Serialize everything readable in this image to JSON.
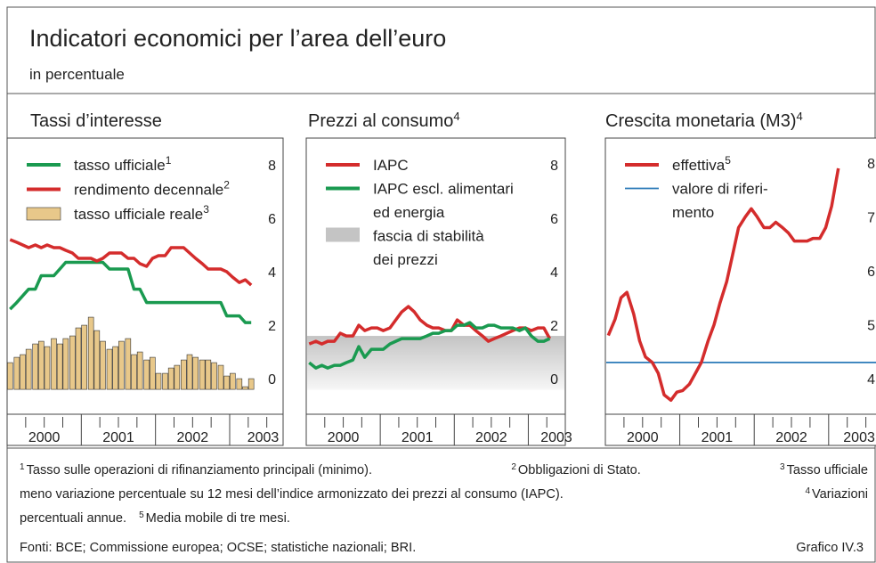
{
  "title": "Indicatori economici per l’area dell’euro",
  "subtitle": "in percentuale",
  "chart_data": [
    {
      "type": "combo",
      "title": "Tassi d’interesse",
      "x": [
        2000.04,
        2000.13,
        2000.21,
        2000.29,
        2000.38,
        2000.46,
        2000.54,
        2000.63,
        2000.71,
        2000.79,
        2000.88,
        2000.96,
        2001.04,
        2001.13,
        2001.21,
        2001.29,
        2001.38,
        2001.46,
        2001.54,
        2001.63,
        2001.71,
        2001.79,
        2001.88,
        2001.96,
        2002.04,
        2002.13,
        2002.21,
        2002.29,
        2002.38,
        2002.46,
        2002.54,
        2002.63,
        2002.71,
        2002.79,
        2002.88,
        2002.96,
        2003.04,
        2003.13,
        2003.21,
        2003.29
      ],
      "xlim": [
        2000,
        2003.72
      ],
      "xticks": [
        {
          "value": 2000.5,
          "label": "2000"
        },
        {
          "value": 2001.5,
          "label": "2001"
        },
        {
          "value": 2002.5,
          "label": "2002"
        },
        {
          "value": 2003.45,
          "label": "2003"
        }
      ],
      "xticks_major": [
        2001,
        2002,
        2003
      ],
      "xticks_minor": [
        2000.25,
        2000.5,
        2000.75,
        2001.25,
        2001.5,
        2001.75,
        2002.25,
        2002.5,
        2002.75,
        2003.25,
        2003.5
      ],
      "ylim": [
        -0.93,
        9.4
      ],
      "yticks": [
        0,
        2,
        4,
        6,
        8
      ],
      "series": [
        {
          "name": "tasso ufficiale",
          "note": "1",
          "kind": "line",
          "color": "#1a9a50",
          "values": [
            3.0,
            3.25,
            3.5,
            3.75,
            3.75,
            4.25,
            4.25,
            4.25,
            4.5,
            4.75,
            4.75,
            4.75,
            4.75,
            4.75,
            4.75,
            4.75,
            4.5,
            4.5,
            4.5,
            4.5,
            3.75,
            3.75,
            3.25,
            3.25,
            3.25,
            3.25,
            3.25,
            3.25,
            3.25,
            3.25,
            3.25,
            3.25,
            3.25,
            3.25,
            3.25,
            2.75,
            2.75,
            2.75,
            2.5,
            2.5
          ]
        },
        {
          "name": "rendimento decennale",
          "note": "2",
          "kind": "line",
          "color": "#d42c2c",
          "values": [
            5.6,
            5.5,
            5.4,
            5.3,
            5.4,
            5.3,
            5.4,
            5.3,
            5.3,
            5.2,
            5.1,
            4.9,
            4.9,
            4.9,
            4.8,
            4.9,
            5.1,
            5.1,
            5.1,
            4.9,
            4.9,
            4.7,
            4.6,
            4.9,
            5.0,
            5.0,
            5.3,
            5.3,
            5.3,
            5.1,
            4.9,
            4.7,
            4.5,
            4.5,
            4.5,
            4.4,
            4.2,
            4.0,
            4.1,
            3.9
          ]
        },
        {
          "name": "tasso ufficiale reale",
          "note": "3",
          "kind": "bar",
          "color": "#e8c88a",
          "values": [
            1.0,
            1.2,
            1.3,
            1.5,
            1.7,
            1.8,
            1.6,
            1.9,
            1.7,
            1.9,
            2.0,
            2.3,
            2.4,
            2.7,
            2.2,
            1.8,
            1.5,
            1.6,
            1.8,
            1.9,
            1.3,
            1.4,
            1.1,
            1.2,
            0.6,
            0.6,
            0.8,
            0.9,
            1.1,
            1.3,
            1.2,
            1.1,
            1.1,
            1.0,
            0.9,
            0.5,
            0.6,
            0.4,
            0.1,
            0.4
          ]
        }
      ]
    },
    {
      "type": "line",
      "title": "Prezzi al consumo",
      "title_note": "4",
      "x": [
        2000.04,
        2000.13,
        2000.21,
        2000.29,
        2000.38,
        2000.46,
        2000.54,
        2000.63,
        2000.71,
        2000.79,
        2000.88,
        2000.96,
        2001.04,
        2001.13,
        2001.21,
        2001.29,
        2001.38,
        2001.46,
        2001.54,
        2001.63,
        2001.71,
        2001.79,
        2001.88,
        2001.96,
        2002.04,
        2002.13,
        2002.21,
        2002.29,
        2002.38,
        2002.46,
        2002.54,
        2002.63,
        2002.71,
        2002.79,
        2002.88,
        2002.96,
        2003.04,
        2003.13,
        2003.21,
        2003.29
      ],
      "xlim": [
        2000,
        2003.5
      ],
      "xticks": [
        {
          "value": 2000.5,
          "label": "2000"
        },
        {
          "value": 2001.5,
          "label": "2001"
        },
        {
          "value": 2002.5,
          "label": "2002"
        },
        {
          "value": 2003.38,
          "label": "2003"
        }
      ],
      "xticks_major": [
        2001,
        2002,
        2003
      ],
      "xticks_minor": [
        2000.25,
        2000.5,
        2000.75,
        2001.25,
        2001.5,
        2001.75,
        2002.25,
        2002.5,
        2002.75,
        2003.25
      ],
      "ylim": [
        -0.93,
        9.4
      ],
      "yticks": [
        0,
        2,
        4,
        6,
        8
      ],
      "series": [
        {
          "name": "IAPC",
          "kind": "line",
          "color": "#d42c2c",
          "values": [
            1.7,
            1.8,
            1.7,
            1.8,
            1.8,
            2.1,
            2.0,
            2.0,
            2.4,
            2.2,
            2.3,
            2.3,
            2.2,
            2.3,
            2.6,
            2.9,
            3.1,
            2.9,
            2.6,
            2.4,
            2.3,
            2.3,
            2.2,
            2.2,
            2.6,
            2.4,
            2.4,
            2.2,
            2.0,
            1.8,
            1.9,
            2.0,
            2.1,
            2.2,
            2.3,
            2.3,
            2.2,
            2.3,
            2.3,
            1.9
          ]
        },
        {
          "name": [
            "IAPC escl. alimentari",
            "ed energia"
          ],
          "kind": "line",
          "color": "#1a9a50",
          "values": [
            1.0,
            0.8,
            0.9,
            0.8,
            0.9,
            0.9,
            1.0,
            1.1,
            1.6,
            1.2,
            1.5,
            1.5,
            1.5,
            1.7,
            1.8,
            1.9,
            1.9,
            1.9,
            1.9,
            2.0,
            2.1,
            2.1,
            2.2,
            2.2,
            2.4,
            2.4,
            2.5,
            2.3,
            2.3,
            2.4,
            2.4,
            2.3,
            2.3,
            2.3,
            2.2,
            2.3,
            2.0,
            1.8,
            1.8,
            1.9
          ]
        },
        {
          "name": [
            "fascia di stabilità",
            "dei prezzi"
          ],
          "kind": "band",
          "color": "#c4c4c4",
          "range": [
            0,
            2
          ]
        }
      ]
    },
    {
      "type": "line",
      "title": "Crescita monetaria (M3)",
      "title_note": "4",
      "x": [
        2000.04,
        2000.13,
        2000.21,
        2000.29,
        2000.38,
        2000.46,
        2000.54,
        2000.63,
        2000.71,
        2000.79,
        2000.88,
        2000.96,
        2001.04,
        2001.13,
        2001.21,
        2001.29,
        2001.38,
        2001.46,
        2001.54,
        2001.63,
        2001.71,
        2001.79,
        2001.88,
        2001.96,
        2002.04,
        2002.13,
        2002.21,
        2002.29,
        2002.38,
        2002.46,
        2002.54,
        2002.63,
        2002.71,
        2002.79,
        2002.88,
        2002.96,
        2003.04,
        2003.13,
        2003.21,
        2003.29
      ],
      "xlim": [
        2000,
        2003.72
      ],
      "xticks": [
        {
          "value": 2000.5,
          "label": "2000"
        },
        {
          "value": 2001.5,
          "label": "2001"
        },
        {
          "value": 2002.5,
          "label": "2002"
        },
        {
          "value": 2003.41,
          "label": "2003"
        }
      ],
      "xticks_major": [
        2001,
        2002,
        2003
      ],
      "xticks_minor": [
        2000.25,
        2000.5,
        2000.75,
        2001.25,
        2001.5,
        2001.75,
        2002.25,
        2002.5,
        2002.75,
        2003.25,
        2003.5
      ],
      "ylim": [
        3.54,
        8.66
      ],
      "yticks": [
        4,
        5,
        6,
        7,
        8
      ],
      "series": [
        {
          "name": "effettiva",
          "note": "5",
          "kind": "line",
          "color": "#d42c2c",
          "values": [
            5.0,
            5.3,
            5.7,
            5.8,
            5.4,
            4.9,
            4.6,
            4.5,
            4.3,
            3.9,
            3.8,
            3.95,
            3.98,
            4.1,
            4.3,
            4.5,
            4.9,
            5.2,
            5.6,
            6.0,
            6.5,
            7.0,
            7.2,
            7.35,
            7.2,
            7.0,
            7.0,
            7.1,
            7.0,
            6.9,
            6.75,
            6.75,
            6.75,
            6.8,
            6.8,
            7.0,
            7.4,
            8.1,
            null,
            null
          ]
        },
        {
          "name": [
            "valore di riferi-",
            "mento"
          ],
          "kind": "hline",
          "color": "#2a7ab8",
          "value": 4.5
        }
      ]
    }
  ],
  "footnotes": [
    [
      {
        "mark": "1",
        "text": "Tasso sulle operazioni di rifinanziamento principali (minimo)."
      },
      {
        "mark": "2",
        "text": "Obbligazioni di Stato."
      },
      {
        "mark": "3",
        "text": "Tasso ufficiale"
      }
    ],
    [
      {
        "text": "meno variazione percentuale su 12 mesi dell’indice armonizzato dei prezzi al consumo (IAPC)."
      },
      {
        "mark": "4",
        "text": "Variazioni"
      }
    ],
    [
      {
        "text": "percentuali annue."
      },
      {
        "mark": "5",
        "text": "Media mobile di tre mesi."
      }
    ]
  ],
  "source": "Fonti: BCE; Commissione europea; OCSE; statistiche nazionali; BRI.",
  "figure_label": "Grafico IV.3"
}
